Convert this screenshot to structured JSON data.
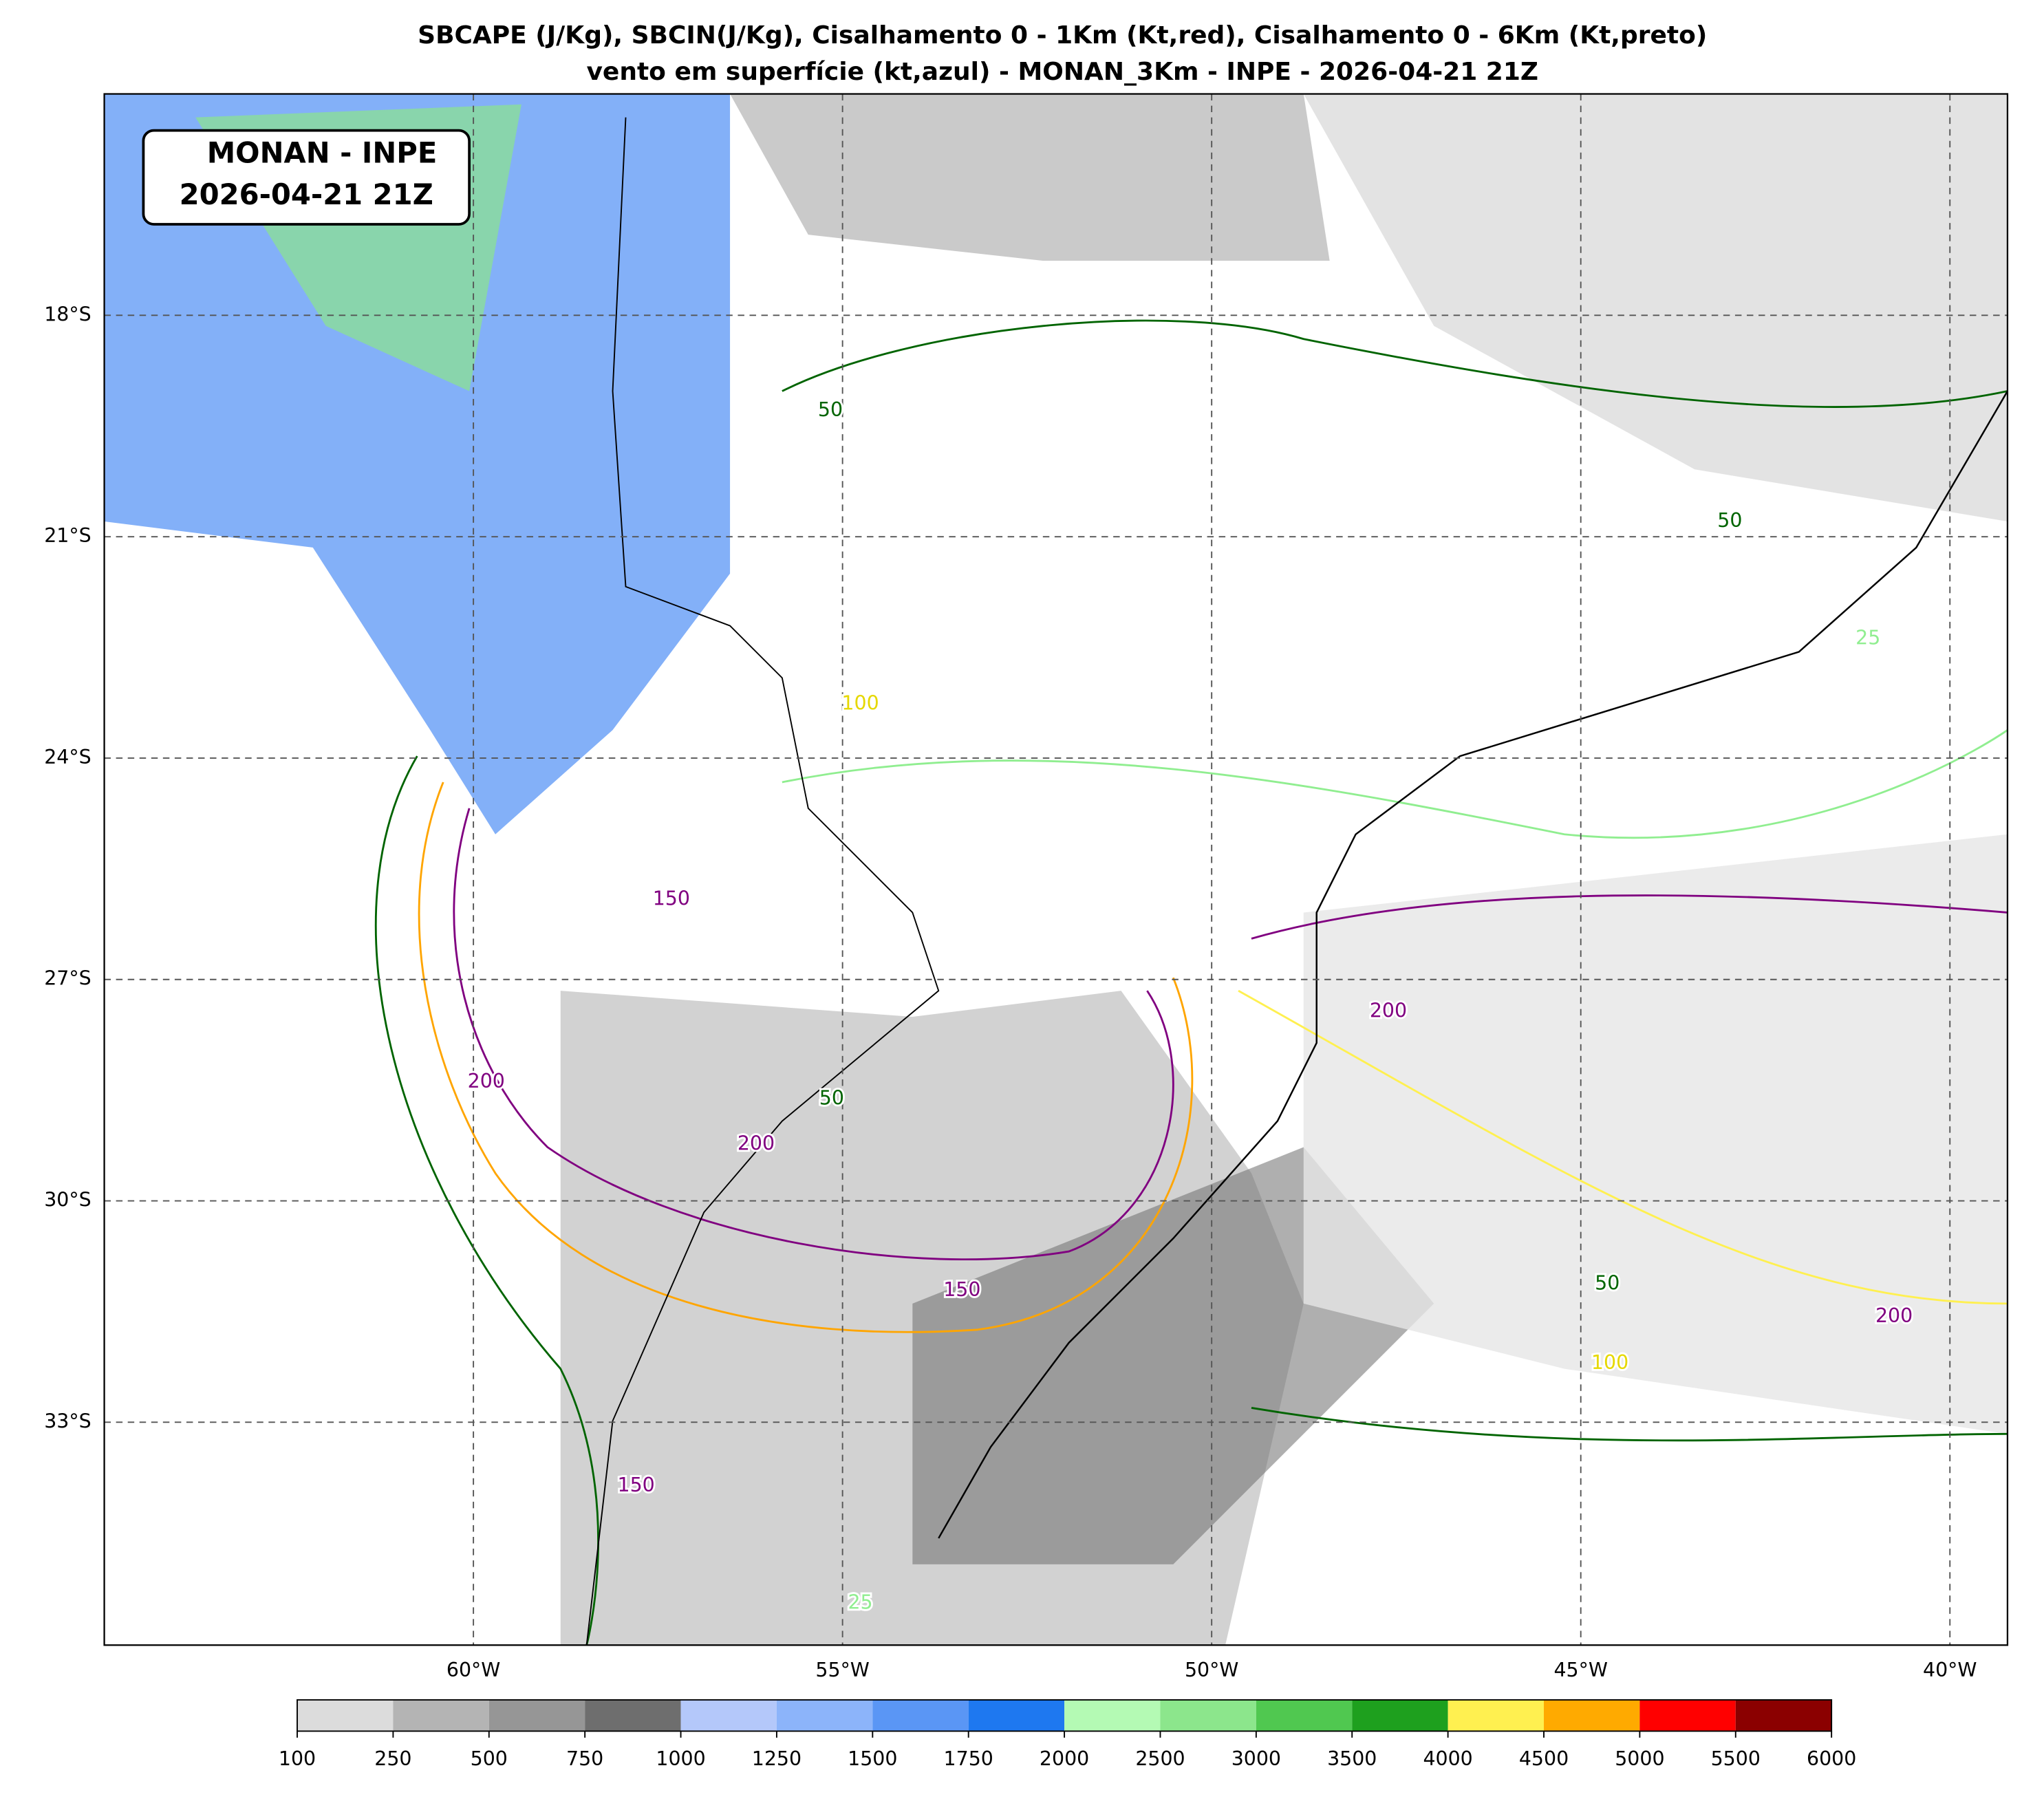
{
  "title": [
    "SBCAPE (J/Kg), SBCIN(J/Kg), Cisalhamento 0 - 1Km (Kt,red), Cisalhamento 0 - 6Km (Kt,preto)",
    "vento em superfície (kt,azul) - MONAN_3Km - INPE - 2026-04-21 21Z"
  ],
  "map": {
    "label": [
      "MONAN - INPE",
      "2026-04-21 21Z"
    ],
    "xlim": [
      -65,
      -39.22
    ],
    "ylim": [
      -36.02,
      -15
    ],
    "xticks": [
      {
        "value": -60,
        "label": "60°W"
      },
      {
        "value": -55,
        "label": "55°W"
      },
      {
        "value": -50,
        "label": "50°W"
      },
      {
        "value": -45,
        "label": "45°W"
      },
      {
        "value": -40,
        "label": "40°W"
      }
    ],
    "yticks": [
      {
        "value": -18,
        "label": "18°S"
      },
      {
        "value": -21,
        "label": "21°S"
      },
      {
        "value": -24,
        "label": "24°S"
      },
      {
        "value": -27,
        "label": "27°S"
      },
      {
        "value": -30,
        "label": "30°S"
      },
      {
        "value": -33,
        "label": "33°S"
      }
    ],
    "grid": true,
    "contour_labels": [
      {
        "label": "50",
        "color": "#006400"
      },
      {
        "label": "50",
        "color": "#006400"
      },
      {
        "label": "50",
        "color": "#006400"
      },
      {
        "label": "50",
        "color": "#006400"
      },
      {
        "label": "200",
        "color": "#800080"
      },
      {
        "label": "200",
        "color": "#800080"
      },
      {
        "label": "200",
        "color": "#800080"
      },
      {
        "label": "200",
        "color": "#800080"
      },
      {
        "label": "150",
        "color": "#800080"
      },
      {
        "label": "150",
        "color": "#800080"
      },
      {
        "label": "150",
        "color": "#800080"
      },
      {
        "label": "100",
        "color": "#e6d800"
      },
      {
        "label": "100",
        "color": "#e6d800"
      },
      {
        "label": "25",
        "color": "#90ee90"
      },
      {
        "label": "25",
        "color": "#90ee90"
      }
    ]
  },
  "colorbar": {
    "levels": [
      100,
      250,
      500,
      750,
      1000,
      1250,
      1500,
      1750,
      2000,
      2500,
      3000,
      3500,
      4000,
      4500,
      5000,
      5500,
      6000
    ],
    "colors": [
      "#dcdcdc",
      "#b4b4b4",
      "#969696",
      "#6e6e6e",
      "#b4c8fa",
      "#8cb4fa",
      "#5a96f5",
      "#1e78f0",
      "#b4fab4",
      "#8ce68c",
      "#50c850",
      "#1ea01e",
      "#fff050",
      "#ffaa00",
      "#ff0000",
      "#8b0000"
    ]
  }
}
